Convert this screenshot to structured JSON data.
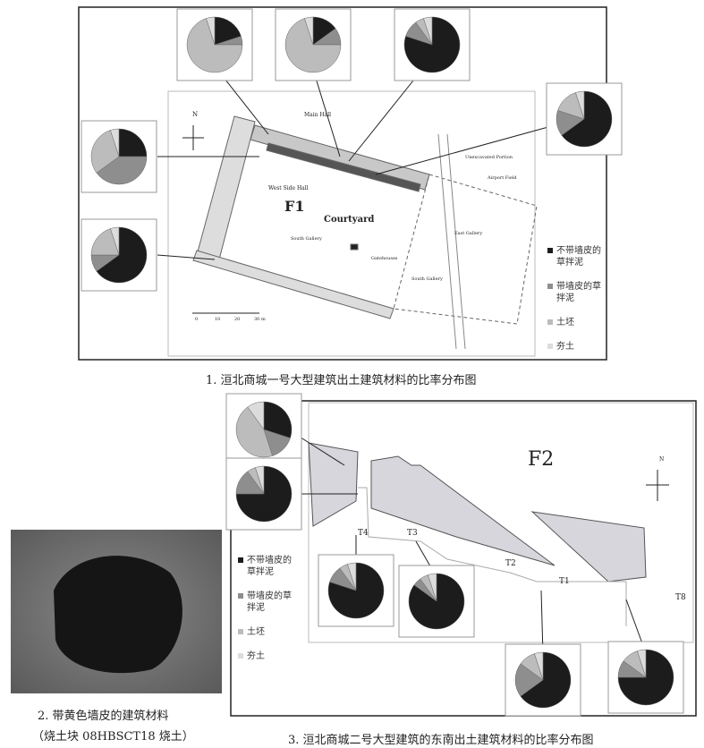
{
  "colors": [
    "#1c1c1c",
    "#8e8e8e",
    "#bcbcbc",
    "#dcdcdc"
  ],
  "figures": [
    {
      "caption": "1. 洹北商城一号大型建筑出土建筑材料的比率分布图",
      "legend": [
        "不带墙皮的草拌泥",
        "带墙皮的草拌泥",
        "土坯",
        "夯土"
      ],
      "map_labels": [
        "Main Hall",
        "West Side Hall",
        "F1",
        "Courtyard",
        "South Gallery",
        "East Gallery",
        "Gatehouses",
        "South Gallery",
        "Airport Field",
        "Unexcavated Portion",
        "N",
        "0",
        "10",
        "20",
        "30 m"
      ],
      "pies": [
        {
          "values": [
            20,
            5,
            70,
            5
          ]
        },
        {
          "values": [
            15,
            10,
            70,
            5
          ]
        },
        {
          "values": [
            80,
            10,
            5,
            5
          ]
        },
        {
          "values": [
            65,
            15,
            15,
            5
          ]
        },
        {
          "values": [
            25,
            40,
            30,
            5
          ]
        },
        {
          "values": [
            65,
            10,
            20,
            5
          ]
        }
      ]
    },
    {
      "caption": "2. 带黄色墙皮的建筑材料",
      "subcaption": "（烧土块 08HBSCT18 烧土）"
    },
    {
      "caption": "3. 洹北商城二号大型建筑的东南出土建筑材料的比率分布图",
      "legend": [
        "不带墙皮的草拌泥",
        "带墙皮的草拌泥",
        "土坯",
        "夯土"
      ],
      "map_labels": [
        "F2",
        "T4",
        "T3",
        "T2",
        "T1",
        "T8",
        "N"
      ],
      "pies": [
        {
          "values": [
            30,
            15,
            45,
            10
          ]
        },
        {
          "values": [
            75,
            15,
            5,
            5
          ]
        },
        {
          "values": [
            80,
            10,
            5,
            5
          ]
        },
        {
          "values": [
            85,
            5,
            5,
            5
          ]
        },
        {
          "values": [
            65,
            20,
            10,
            5
          ]
        },
        {
          "values": [
            75,
            10,
            10,
            5
          ]
        }
      ]
    }
  ]
}
